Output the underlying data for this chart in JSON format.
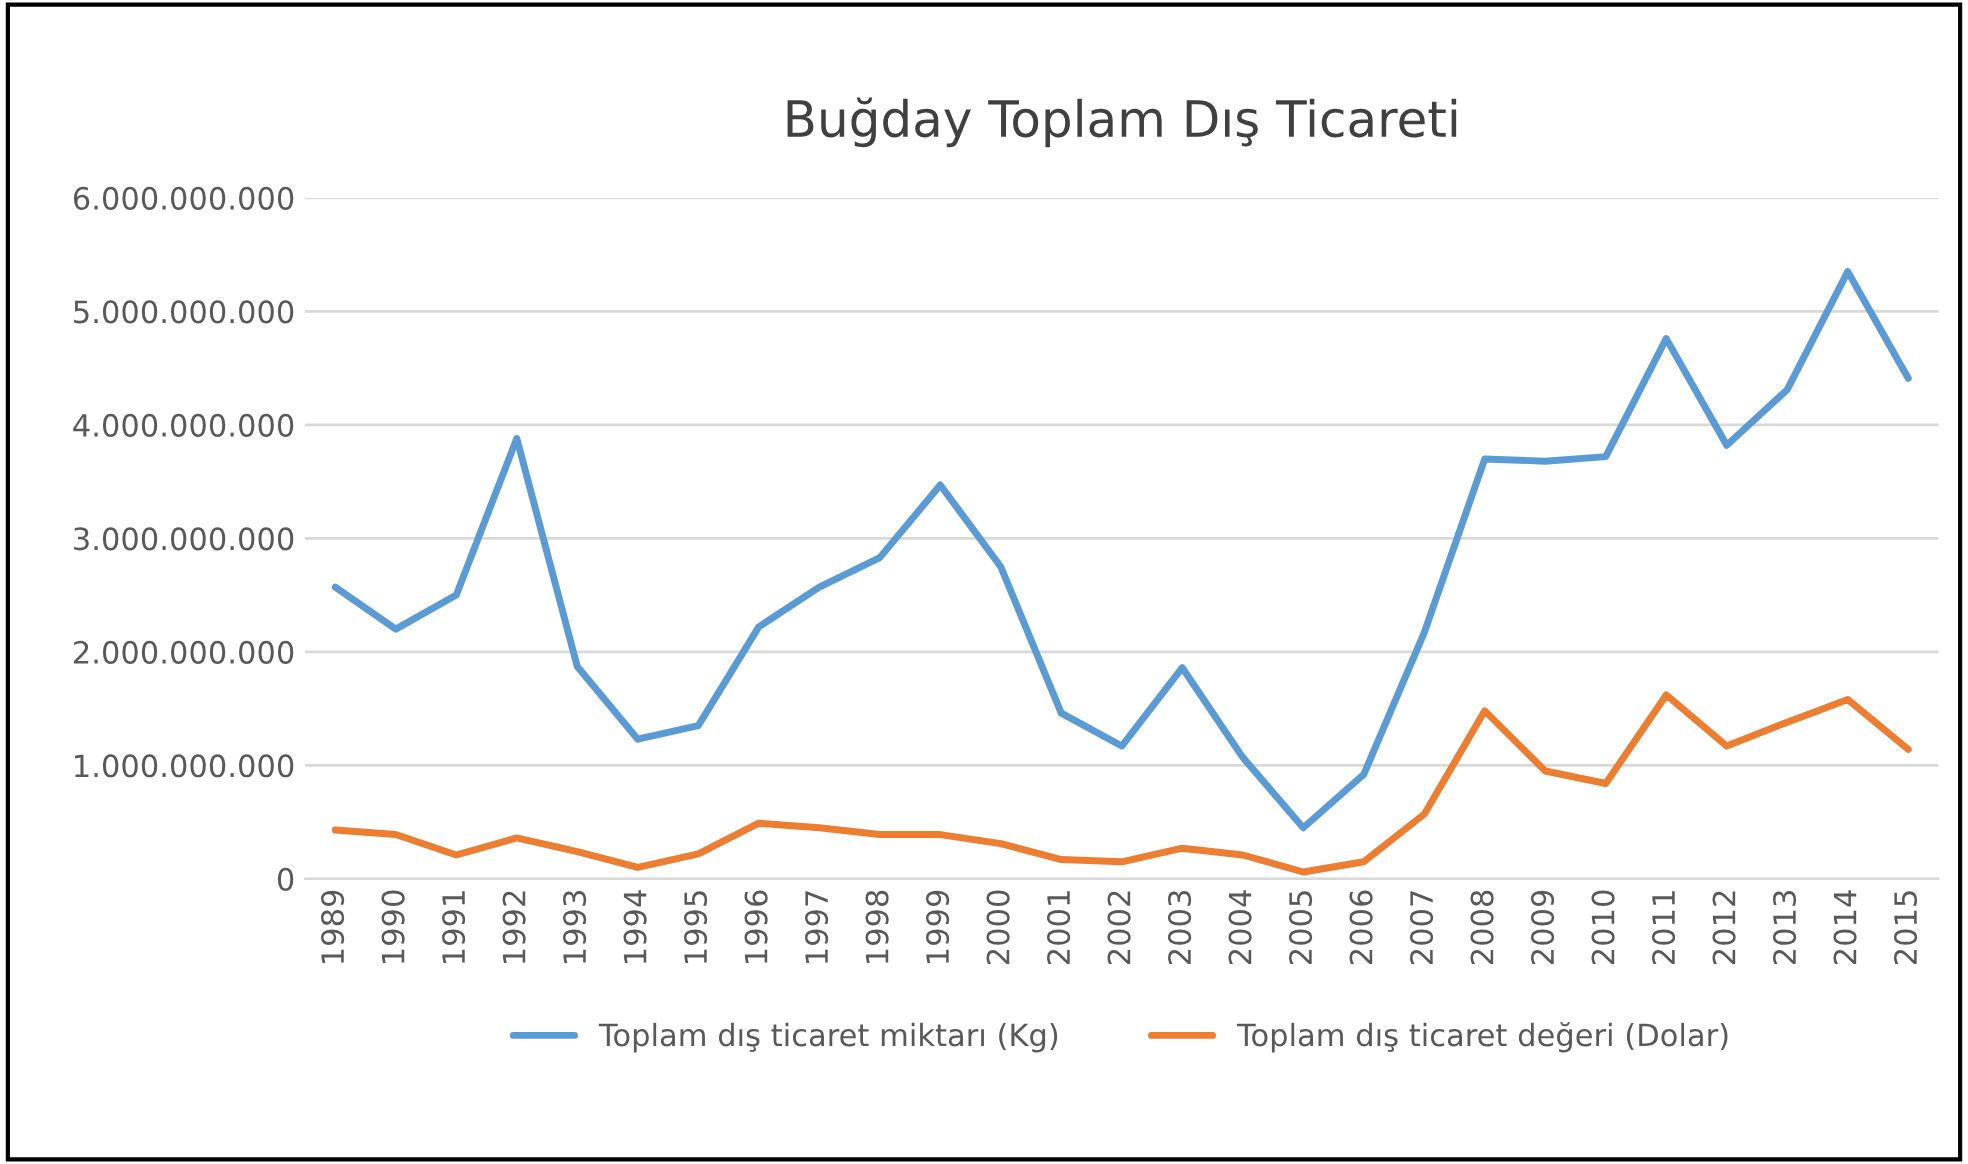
{
  "chart_data": {
    "type": "line",
    "title": "Buğday Toplam Dış Ticareti",
    "categories": [
      "1989",
      "1990",
      "1991",
      "1992",
      "1993",
      "1994",
      "1995",
      "1996",
      "1997",
      "1998",
      "1999",
      "2000",
      "2001",
      "2002",
      "2003",
      "2004",
      "2005",
      "2006",
      "2007",
      "2008",
      "2009",
      "2010",
      "2011",
      "2012",
      "2013",
      "2014",
      "2015"
    ],
    "series": [
      {
        "name": "Toplam dış ticaret miktarı (Kg)",
        "color": "#5b9bd5",
        "values": [
          2570000000,
          2200000000,
          2500000000,
          3880000000,
          1870000000,
          1230000000,
          1350000000,
          2220000000,
          2570000000,
          2830000000,
          3470000000,
          2750000000,
          1460000000,
          1170000000,
          1860000000,
          1070000000,
          450000000,
          920000000,
          2170000000,
          3700000000,
          3680000000,
          3720000000,
          4760000000,
          3820000000,
          4310000000,
          5350000000,
          4410000000
        ]
      },
      {
        "name": "Toplam dış ticaret değeri (Dolar)",
        "color": "#ed7d31",
        "values": [
          430000000,
          390000000,
          210000000,
          360000000,
          240000000,
          100000000,
          220000000,
          490000000,
          450000000,
          390000000,
          390000000,
          310000000,
          170000000,
          150000000,
          270000000,
          210000000,
          60000000,
          150000000,
          570000000,
          1480000000,
          950000000,
          840000000,
          1620000000,
          1170000000,
          1380000000,
          1580000000,
          1140000000
        ]
      }
    ],
    "ylim": [
      0,
      6000000000
    ],
    "yticks": [
      {
        "value": 0,
        "label": "0"
      },
      {
        "value": 1000000000,
        "label": "1.000.000.000"
      },
      {
        "value": 2000000000,
        "label": "2.000.000.000"
      },
      {
        "value": 3000000000,
        "label": "3.000.000.000"
      },
      {
        "value": 4000000000,
        "label": "4.000.000.000"
      },
      {
        "value": 5000000000,
        "label": "5.000.000.000"
      },
      {
        "value": 6000000000,
        "label": "6.000.000.000"
      }
    ],
    "grid": "y",
    "legend": "bottom",
    "marker": "none",
    "line_style": "solid"
  }
}
